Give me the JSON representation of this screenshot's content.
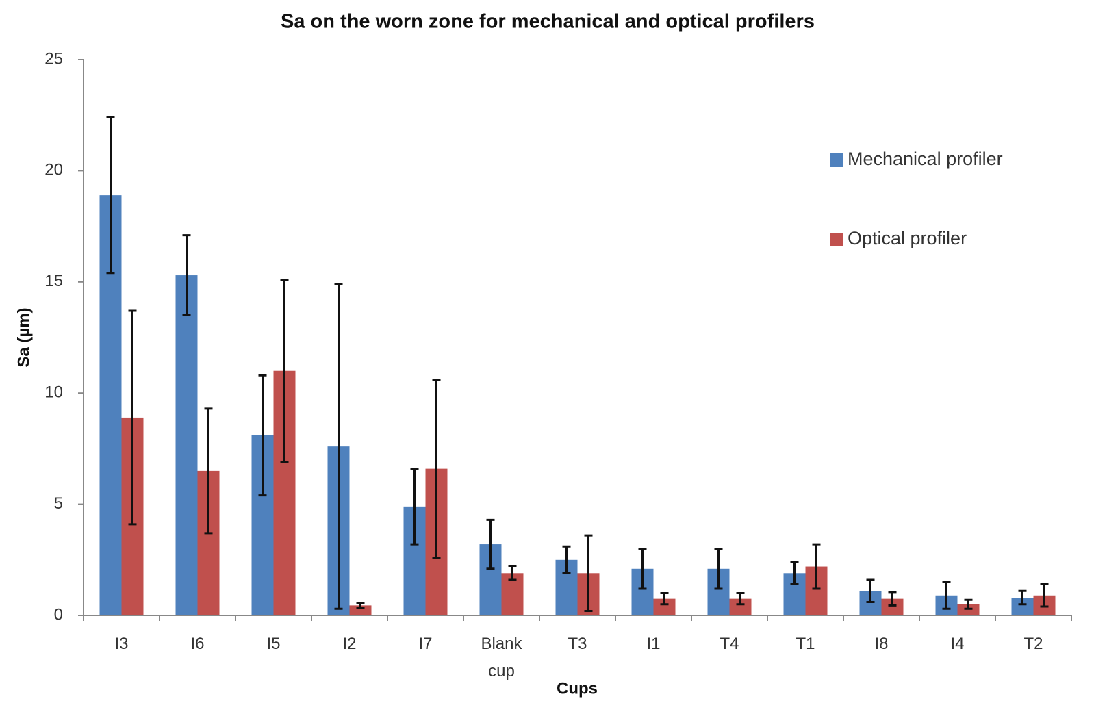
{
  "chart_data": {
    "type": "bar",
    "title": "Sa on the worn zone for mechanical and optical profilers",
    "x_label": "Cups",
    "y_label": "Sa (µm)",
    "categories": [
      "I3",
      "I6",
      "I5",
      "I2",
      "I7",
      "Blank cup",
      "T3",
      "I1",
      "T4",
      "T1",
      "I8",
      "I4",
      "T2"
    ],
    "series": [
      {
        "name": "Mechanical profiler",
        "color": "#4f81bd",
        "values": [
          18.9,
          15.3,
          8.1,
          7.6,
          4.9,
          3.2,
          2.5,
          2.1,
          2.1,
          1.9,
          1.1,
          0.9,
          0.8
        ],
        "errors": [
          3.5,
          1.8,
          2.7,
          7.3,
          1.7,
          1.1,
          0.6,
          0.9,
          0.9,
          0.5,
          0.5,
          0.6,
          0.3
        ]
      },
      {
        "name": "Optical profiler",
        "color": "#c0504d",
        "values": [
          8.9,
          6.5,
          11.0,
          0.45,
          6.6,
          1.9,
          1.9,
          0.75,
          0.75,
          2.2,
          0.75,
          0.5,
          0.9
        ],
        "errors": [
          4.8,
          2.8,
          4.1,
          0.1,
          4.0,
          0.3,
          1.7,
          0.25,
          0.25,
          1.0,
          0.3,
          0.2,
          0.5
        ]
      }
    ],
    "ylim": [
      0,
      25
    ],
    "yticks": [
      0,
      5,
      10,
      15,
      20,
      25
    ],
    "grid": false,
    "legend_position": "right"
  }
}
